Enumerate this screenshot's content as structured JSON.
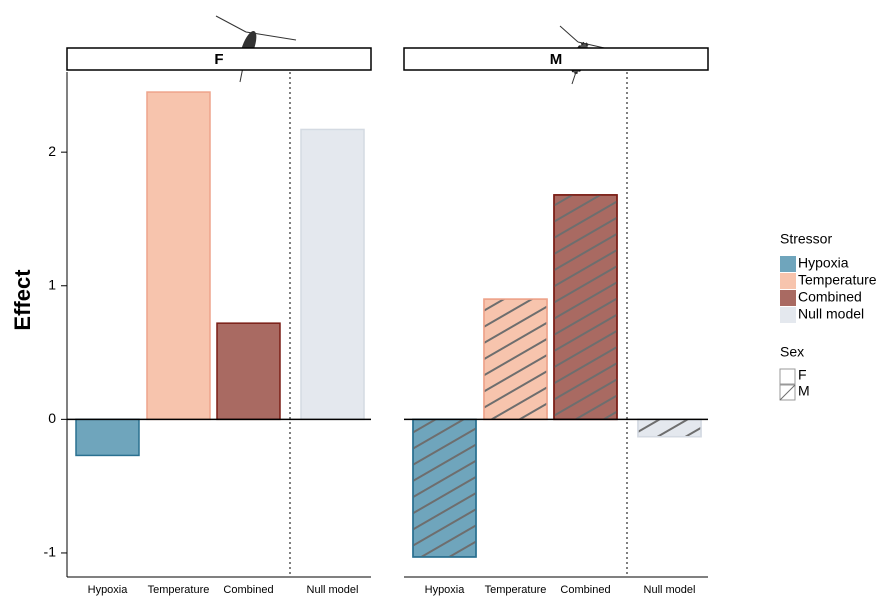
{
  "chart_data": {
    "type": "bar",
    "ylabel": "Effect",
    "categories": [
      "Hypoxia",
      "Temperature",
      "Combined",
      "Null model"
    ],
    "colors": [
      "#6fa5bc",
      "#f7c4ad",
      "#a96a62",
      "#e4e8ee"
    ],
    "edge_colors": [
      "#2a7090",
      "#eea48b",
      "#7a1d15",
      "#d4dae2"
    ],
    "legend_title": "Stressor",
    "series_legend_title": "Sex",
    "series": [
      {
        "name": "F",
        "values": [
          -0.27,
          2.45,
          0.72,
          2.17
        ],
        "hatch": false
      },
      {
        "name": "M",
        "values": [
          -1.03,
          0.9,
          1.68,
          -0.13
        ],
        "hatch": true
      }
    ],
    "ylim": [
      -1.18,
      2.6
    ],
    "yticks": [
      -1,
      0,
      1,
      2
    ]
  }
}
